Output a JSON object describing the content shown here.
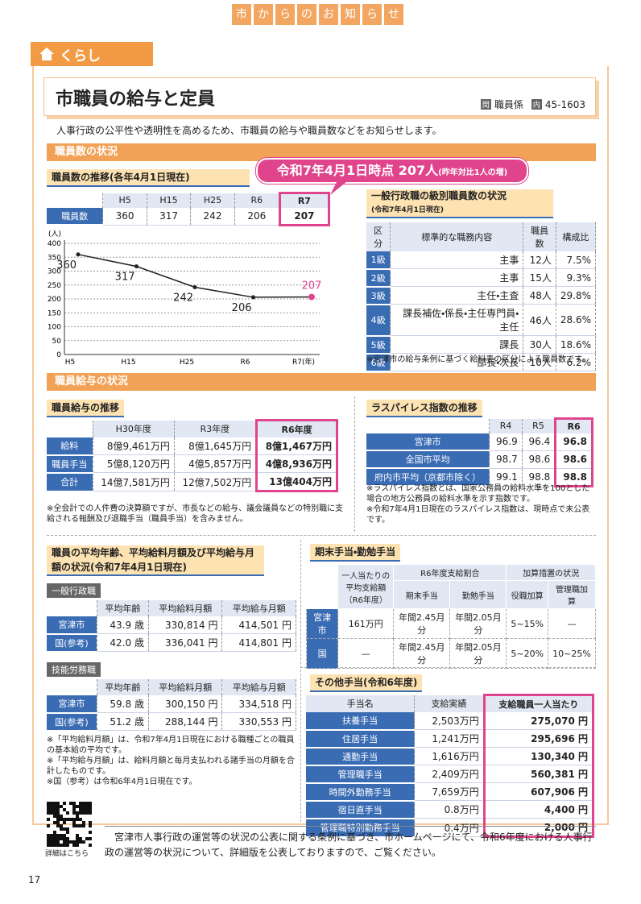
{
  "header": {
    "tabs": [
      "市",
      "か",
      "ら",
      "の",
      "お",
      "知",
      "ら",
      "せ"
    ],
    "category": "くらし"
  },
  "article": {
    "title": "市職員の給与と定員",
    "contact_icon": "問",
    "contact_dept": "職員係",
    "phone_icon": "内",
    "phone": "45-1603",
    "intro": "人事行政の公平性や透明性を高めるため、市職員の給与や職員数などをお知らせします。"
  },
  "staff": {
    "section": "職員数の状況",
    "subheading": "職員数の推移(各年4月1日現在)",
    "callout": "令和7年4月1日時点 207人",
    "callout_note": "(昨年対比1人の増)",
    "table": {
      "columns": [
        "H5",
        "H15",
        "H25",
        "R6",
        "R7"
      ],
      "rows": [
        [
          "職員数",
          "360",
          "317",
          "242",
          "206",
          "207"
        ]
      ]
    }
  },
  "chart_data": {
    "type": "line",
    "y_label": "(人)",
    "categories": [
      "H5",
      "H15",
      "H25",
      "R6",
      "R7(年)"
    ],
    "values": [
      360,
      317,
      242,
      206,
      207
    ],
    "color": "#222222",
    "highlight_color": "#e0448c",
    "ylim": [
      0,
      400
    ],
    "yticks": [
      0,
      50,
      100,
      150,
      200,
      250,
      300,
      350,
      400
    ],
    "grid": true
  },
  "grades": {
    "heading": "一般行政職の級別職員数の状況",
    "subheading": "(令和7年4月1日現在)",
    "table": {
      "columns": [
        "区分",
        "標準的な職務内容",
        "職員数",
        "構成比"
      ],
      "rows": [
        [
          "1級",
          "主事",
          "12人",
          "7.5%"
        ],
        [
          "2級",
          "主事",
          "15人",
          "9.3%"
        ],
        [
          "3級",
          "主任・主査",
          "48人",
          "29.8%"
        ],
        [
          "4級",
          "課長補佐・係長・主任専門員・主任",
          "46人",
          "28.6%"
        ],
        [
          "5級",
          "課長",
          "30人",
          "18.6%"
        ],
        [
          "6級",
          "部長・次長",
          "10人",
          "6.2%"
        ]
      ]
    },
    "note": "※宮津市の給与条例に基づく給料表の区分による職員数です。"
  },
  "salary": {
    "section": "職員給与の状況",
    "subheading": "職員給与の推移",
    "table": {
      "columns": [
        "H30年度",
        "R3年度",
        "R6年度"
      ],
      "rows": [
        [
          "給料",
          "8億9,461万円",
          "8億1,645万円",
          "8億1,467万円"
        ],
        [
          "職員手当",
          "5億8,120万円",
          "4億5,857万円",
          "4億8,936万円"
        ],
        [
          "合計",
          "14億7,581万円",
          "12億7,502万円",
          "13億404万円"
        ]
      ]
    },
    "note": "※全会計での人件費の決算額ですが、市長などの給与、議会議員などの特別職に支給される報酬及び退職手当（職員手当）を含みません。"
  },
  "laspeyres": {
    "subheading": "ラスパイレス指数の推移",
    "table": {
      "columns": [
        "R4",
        "R5",
        "R6"
      ],
      "rows": [
        [
          "宮津市",
          "96.9",
          "96.4",
          "96.8"
        ],
        [
          "全国市平均",
          "98.7",
          "98.6",
          "98.6"
        ],
        [
          "府内市平均（京都市除く）",
          "99.1",
          "98.8",
          "98.8"
        ]
      ]
    },
    "notes": [
      "※ラスパイレス指数とは、国家公務員の給料水準を100とした場合の地方公務員の給料水準を示す指数です。",
      "※令和7年4月1日現在のラスパイレス指数は、現時点で未公表です。"
    ]
  },
  "average": {
    "subheading": "職員の平均年齢、平均給料月額及び平均給与月額の状況(令和7年4月1日現在)",
    "general": {
      "label": "一般行政職",
      "table": {
        "columns": [
          "平均年齢",
          "平均給料月額",
          "平均給与月額"
        ],
        "rows": [
          [
            "宮津市",
            "43.9 歳",
            "330,814 円",
            "414,501 円"
          ],
          [
            "国(参考)",
            "42.0 歳",
            "336,041 円",
            "414,801 円"
          ]
        ]
      }
    },
    "labor": {
      "label": "技能労務職",
      "table": {
        "columns": [
          "平均年齢",
          "平均給料月額",
          "平均給与月額"
        ],
        "rows": [
          [
            "宮津市",
            "59.8 歳",
            "300,150 円",
            "334,518 円"
          ],
          [
            "国(参考)",
            "51.2 歳",
            "288,144 円",
            "330,553 円"
          ]
        ]
      }
    },
    "notes": [
      "※「平均給料月額」は、令和7年4月1日現在における職種ごとの職員の基本給の平均です。",
      "※「平均給与月額」は、給料月額と毎月支払われる諸手当の月額を合計したものです。",
      "※国（参考）は令和6年4月1日現在です。"
    ]
  },
  "bonus": {
    "subheading": "期末手当・勤勉手当",
    "headers": {
      "average": "一人当たりの平均支給額（R6年度）",
      "ratio": "R6年度支給割合",
      "ratio_columns": [
        "期末手当",
        "勤勉手当"
      ],
      "addition": "加算措置の状況",
      "addition_columns": [
        "役職加算",
        "管理職加算"
      ]
    },
    "rows": [
      [
        "宮津市",
        "161万円",
        "年間2.45月分",
        "年間2.05月分",
        "5~15%",
        "—"
      ],
      [
        "国",
        "—",
        "年間2.45月分",
        "年間2.05月分",
        "5~20%",
        "10~25%"
      ]
    ]
  },
  "allowances": {
    "subheading": "その他手当(令和6年度)",
    "table": {
      "columns": [
        "手当名",
        "支給実績",
        "支給職員一人当たり"
      ],
      "rows": [
        [
          "扶養手当",
          "2,503万円",
          "275,070 円"
        ],
        [
          "住居手当",
          "1,241万円",
          "295,696 円"
        ],
        [
          "通勤手当",
          "1,616万円",
          "130,340 円"
        ],
        [
          "管理職手当",
          "2,409万円",
          "560,381 円"
        ],
        [
          "時間外勤務手当",
          "7,659万円",
          "607,906 円"
        ],
        [
          "宿日直手当",
          "0.8万円",
          "4,400 円"
        ],
        [
          "管理職特別勤務手当",
          "0.4万円",
          "2,000 円"
        ]
      ]
    }
  },
  "footer": {
    "qr_caption": "詳細はこちら",
    "text": "宮津市人事行政の運営等の状況の公表に関する条例に基づき、市ホームページにて、令和6年度における人事行政の運営等の状況について、詳細版を公表しておりますので、ご覧ください。",
    "page_number": "17"
  }
}
